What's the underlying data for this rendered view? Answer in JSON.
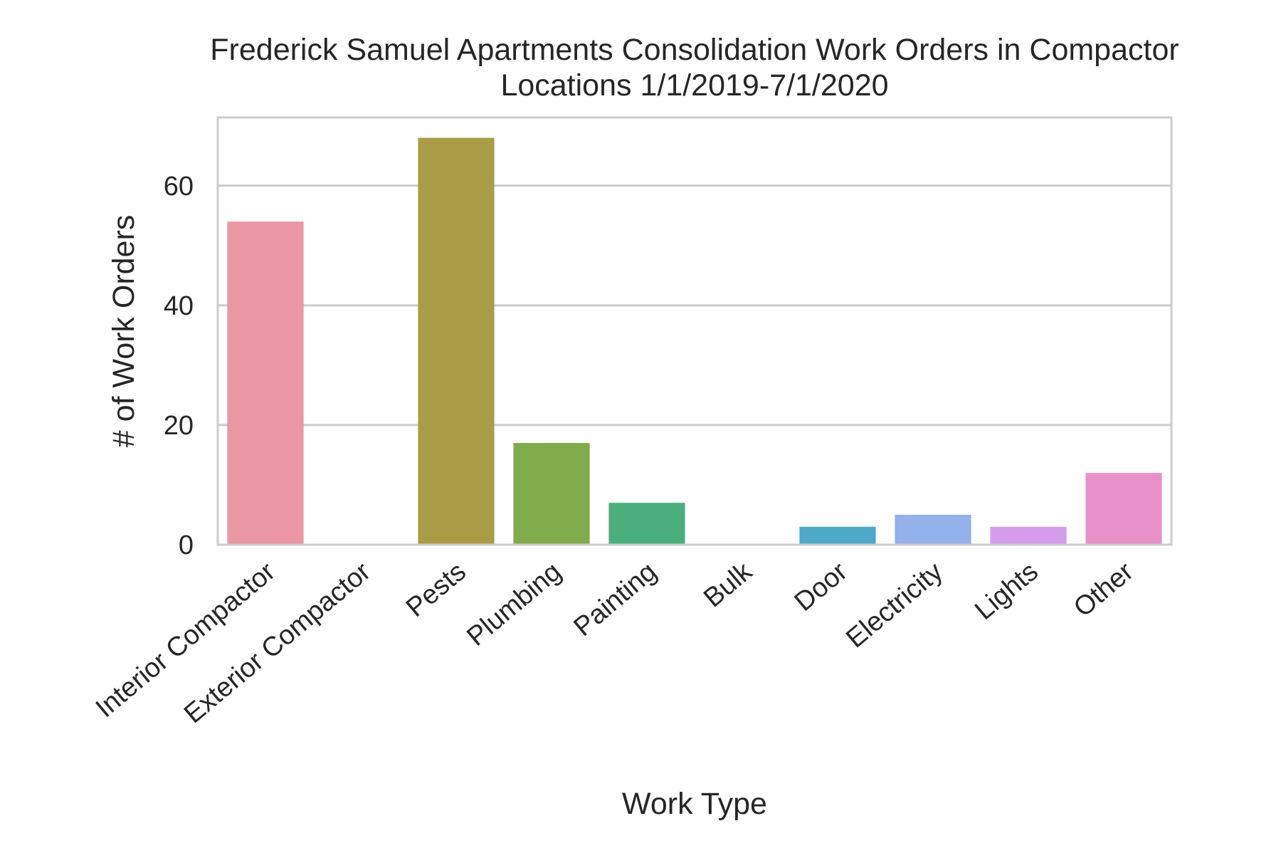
{
  "chart_data": {
    "type": "bar",
    "title_lines": [
      "Frederick Samuel Apartments Consolidation Work Orders in Compactor",
      "Locations 1/1/2019-7/1/2020"
    ],
    "xlabel": "Work Type",
    "ylabel": "# of Work Orders",
    "categories": [
      "Interior Compactor",
      "Exterior Compactor",
      "Pests",
      "Plumbing",
      "Painting",
      "Bulk",
      "Door",
      "Electricity",
      "Lights",
      "Other"
    ],
    "values": [
      54,
      0,
      68,
      17,
      7,
      0,
      3,
      5,
      3,
      12
    ],
    "colors": [
      "#ea96a3",
      "#d9a06c",
      "#ab9d48",
      "#80ac4b",
      "#4baf7d",
      "#4fb1a3",
      "#4ea9c8",
      "#93b1eb",
      "#d59cec",
      "#e891c9"
    ],
    "ylim": [
      0,
      71.4
    ],
    "yticks": [
      0,
      20,
      40,
      60
    ],
    "grid": true
  }
}
